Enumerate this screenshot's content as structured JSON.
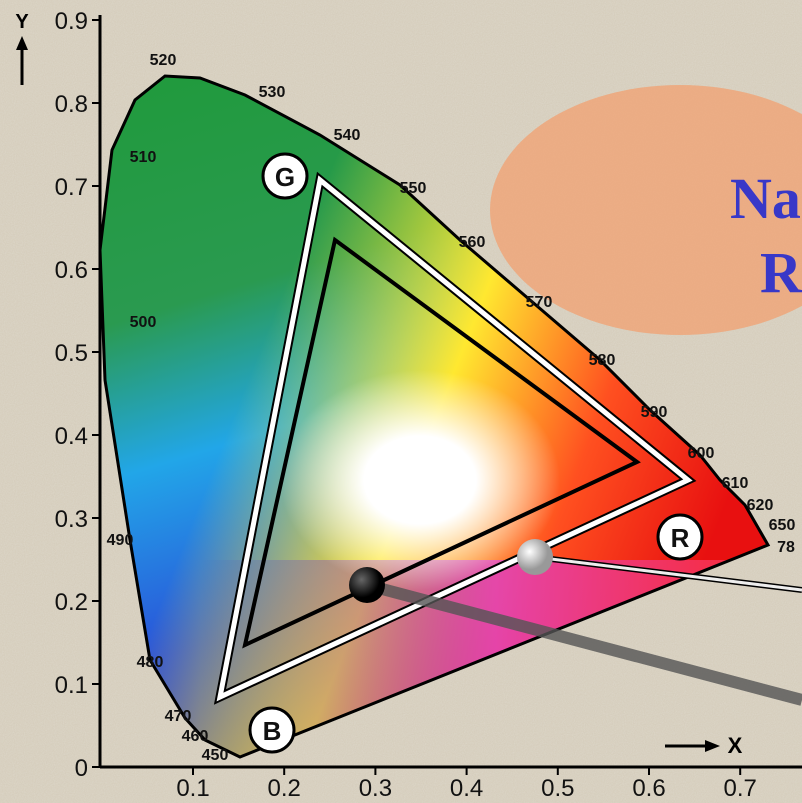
{
  "axes": {
    "y_label": "Y",
    "x_label": "X",
    "y_ticks": [
      "0",
      "0.1",
      "0.2",
      "0.3",
      "0.4",
      "0.5",
      "0.6",
      "0.7",
      "0.8",
      "0.9"
    ],
    "x_ticks": [
      "0.1",
      "0.2",
      "0.3",
      "0.4",
      "0.5",
      "0.6",
      "0.7"
    ]
  },
  "wavelengths": [
    "450",
    "460",
    "470",
    "480",
    "490",
    "500",
    "510",
    "520",
    "530",
    "540",
    "550",
    "560",
    "570",
    "580",
    "590",
    "600",
    "610",
    "620",
    "650",
    "78"
  ],
  "primaries": {
    "green": "G",
    "red": "R",
    "blue": "B"
  },
  "overlay_text": [
    "Na",
    "R"
  ]
}
